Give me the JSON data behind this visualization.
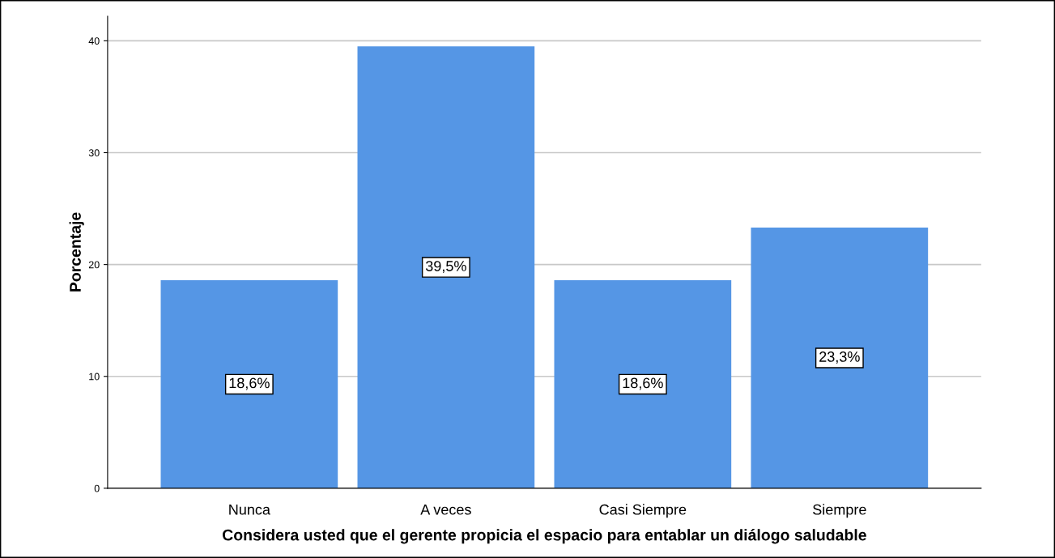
{
  "chart_data": {
    "type": "bar",
    "xlabel": "Considera usted que el gerente propicia el espacio para entablar un diálogo saludable",
    "ylabel": "Porcentaje",
    "categories": [
      "Nunca",
      "A veces",
      "Casi Siempre",
      "Siempre"
    ],
    "values": [
      18.6,
      39.5,
      18.6,
      23.3
    ],
    "value_labels": [
      "18,6%",
      "39,5%",
      "18,6%",
      "23,3%"
    ],
    "color": "#5596e5",
    "ylim": [
      0,
      42.2
    ],
    "yticks": [
      0,
      10,
      20,
      30,
      40
    ],
    "grid": "y"
  }
}
